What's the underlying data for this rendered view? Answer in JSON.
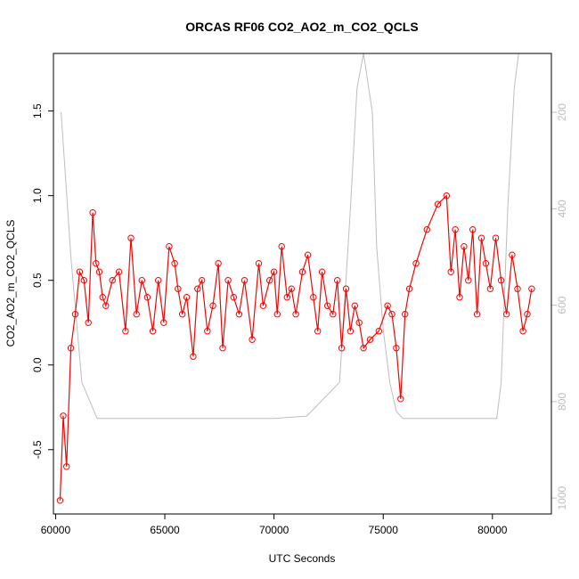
{
  "chart_data": {
    "type": "line",
    "title": "ORCAS RF06 CO2_AO2_m_CO2_QCLS",
    "xlabel": "UTC Seconds",
    "ylabel": "CO2_AO2_m_CO2_QCLS",
    "xlim": [
      59900,
      82700
    ],
    "ylim": [
      -0.88,
      1.84
    ],
    "x_ticks": [
      60000,
      65000,
      70000,
      75000,
      80000
    ],
    "y_ticks": [
      -0.5,
      0.0,
      0.5,
      1.0,
      1.5
    ],
    "y2_ticks": [
      200,
      400,
      600,
      800,
      1000
    ],
    "y2lim": [
      1033,
      78
    ],
    "grid": false,
    "series": [
      {
        "color": "#ff0000",
        "style": "line-with-open-circles",
        "x": [
          60200,
          60350,
          60500,
          60700,
          60900,
          61100,
          61300,
          61500,
          61700,
          61850,
          62000,
          62150,
          62300,
          62600,
          62900,
          63200,
          63450,
          63700,
          63950,
          64200,
          64450,
          64700,
          64950,
          65200,
          65450,
          65600,
          65800,
          66000,
          66300,
          66500,
          66700,
          66950,
          67200,
          67450,
          67650,
          67900,
          68150,
          68400,
          68650,
          69000,
          69300,
          69500,
          69800,
          70000,
          70150,
          70350,
          70600,
          70800,
          71000,
          71300,
          71550,
          71800,
          72000,
          72200,
          72450,
          72700,
          72900,
          73100,
          73300,
          73500,
          73700,
          73900,
          74100,
          74400,
          74800,
          75200,
          75400,
          75600,
          75800,
          76000,
          76200,
          76500,
          77000,
          77500,
          77900,
          78100,
          78300,
          78500,
          78700,
          78900,
          79100,
          79300,
          79500,
          79700,
          79900,
          80150,
          80400,
          80650,
          80900,
          81150,
          81400,
          81600,
          81800
        ],
        "y": [
          -0.8,
          -0.3,
          -0.6,
          0.1,
          0.3,
          0.55,
          0.5,
          0.25,
          0.9,
          0.6,
          0.55,
          0.4,
          0.35,
          0.5,
          0.55,
          0.2,
          0.75,
          0.3,
          0.5,
          0.4,
          0.2,
          0.5,
          0.25,
          0.7,
          0.6,
          0.45,
          0.3,
          0.4,
          0.05,
          0.45,
          0.5,
          0.2,
          0.35,
          0.6,
          0.1,
          0.5,
          0.4,
          0.3,
          0.5,
          0.15,
          0.6,
          0.35,
          0.5,
          0.55,
          0.3,
          0.7,
          0.4,
          0.45,
          0.3,
          0.55,
          0.65,
          0.4,
          0.2,
          0.55,
          0.35,
          0.3,
          0.5,
          0.1,
          0.45,
          0.2,
          0.35,
          0.25,
          0.1,
          0.15,
          0.2,
          0.35,
          0.3,
          0.1,
          -0.2,
          0.3,
          0.45,
          0.6,
          0.8,
          0.95,
          1.0,
          0.55,
          0.8,
          0.4,
          0.7,
          0.5,
          0.8,
          0.3,
          0.75,
          0.6,
          0.45,
          0.75,
          0.5,
          0.3,
          0.65,
          0.45,
          0.2,
          0.3,
          0.45
        ]
      },
      {
        "color": "#bdbdbd",
        "style": "line",
        "axis": "right",
        "x": [
          60250,
          60700,
          61200,
          61900,
          62300,
          70000,
          71500,
          73000,
          73500,
          73800,
          74100,
          74500,
          74700,
          75000,
          75300,
          75600,
          75900,
          76300,
          80200,
          80400,
          80700,
          81000,
          81200
        ],
        "y": [
          200,
          500,
          760,
          835,
          835,
          835,
          830,
          760,
          400,
          150,
          60,
          200,
          480,
          650,
          760,
          820,
          835,
          835,
          835,
          760,
          400,
          150,
          50
        ]
      }
    ]
  }
}
